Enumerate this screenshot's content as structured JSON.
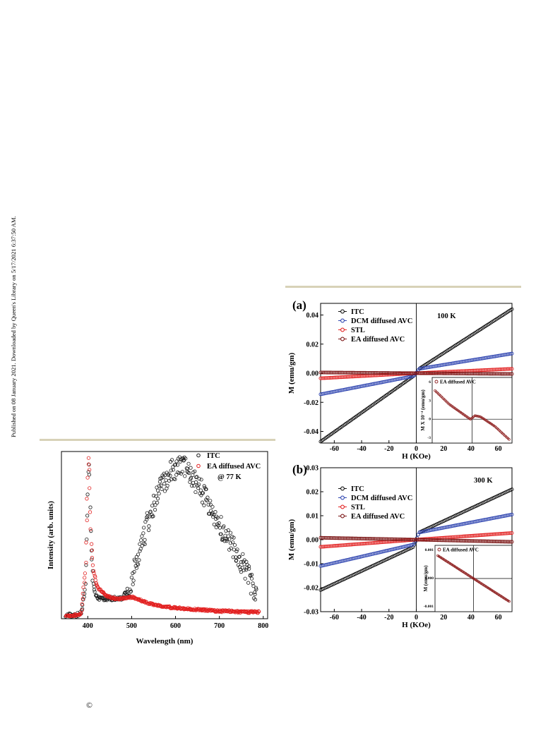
{
  "page": {
    "side_note": "Published on 08 January 2021. Downloaded by Queen's Library on 5/17/2021 6:37:50 AM.",
    "copyright_symbol": "©",
    "rule_color": "#d8d2b8"
  },
  "chart_data": [
    {
      "type": "scatter",
      "xlabel": "Wavelength (nm)",
      "ylabel": "Intensity (arb. units)",
      "xlim": [
        340,
        810
      ],
      "ylim": [
        0,
        1
      ],
      "xticks": [
        "400",
        "500",
        "600",
        "700",
        "800"
      ],
      "annotation": "@ 77 K",
      "legend_position": "top-right",
      "series": [
        {
          "name": "ITC",
          "color": "#1a1a1a",
          "x": [
            350,
            370,
            385,
            395,
            400,
            402,
            404,
            406,
            408,
            412,
            418,
            425,
            440,
            460,
            480,
            500,
            520,
            540,
            560,
            580,
            600,
            615,
            625,
            640,
            660,
            680,
            700,
            720,
            740,
            760,
            775,
            785
          ],
          "y": [
            0.02,
            0.02,
            0.03,
            0.2,
            0.75,
            0.95,
            0.85,
            0.55,
            0.4,
            0.22,
            0.15,
            0.12,
            0.12,
            0.12,
            0.12,
            0.22,
            0.42,
            0.6,
            0.75,
            0.85,
            0.9,
            0.91,
            0.89,
            0.84,
            0.76,
            0.66,
            0.56,
            0.48,
            0.4,
            0.3,
            0.2,
            0.14
          ]
        },
        {
          "name": "EA diffused AVC",
          "color": "#e22020",
          "x": [
            350,
            370,
            385,
            395,
            400,
            402,
            404,
            406,
            408,
            412,
            418,
            425,
            440,
            460,
            480,
            500,
            520,
            540,
            560,
            580,
            600,
            625,
            650,
            675,
            700,
            725,
            750,
            775,
            790
          ],
          "y": [
            0.02,
            0.02,
            0.03,
            0.3,
            0.85,
            0.98,
            0.85,
            0.6,
            0.45,
            0.3,
            0.22,
            0.18,
            0.14,
            0.12,
            0.12,
            0.13,
            0.11,
            0.09,
            0.08,
            0.07,
            0.065,
            0.06,
            0.055,
            0.05,
            0.045,
            0.045,
            0.04,
            0.04,
            0.04
          ]
        }
      ]
    },
    {
      "type": "scatter",
      "panel_label": "(a)",
      "xlabel": "H (KOe)",
      "ylabel": "M (emu/gm)",
      "xlim": [
        -70,
        70
      ],
      "ylim": [
        -0.048,
        0.048
      ],
      "xticks": [
        -60,
        -40,
        -20,
        0,
        20,
        40,
        60
      ],
      "yticks": [
        -0.04,
        -0.02,
        0.0,
        0.02,
        0.04
      ],
      "ytick_labels": [
        "-0.04",
        "-0.02",
        "0.00",
        "0.02",
        "0.04"
      ],
      "annotation": "100 K",
      "legend_position": "top-left",
      "series": [
        {
          "name": "ITC",
          "color": "#111111",
          "x": [
            -70,
            -2,
            0,
            2,
            70
          ],
          "y": [
            -0.047,
            -0.002,
            0.0,
            0.003,
            0.044
          ]
        },
        {
          "name": "DCM diffused AVC",
          "color": "#2f45b0",
          "x": [
            -70,
            -2,
            0,
            2,
            70
          ],
          "y": [
            -0.0145,
            -0.002,
            0.0,
            0.003,
            0.0135
          ]
        },
        {
          "name": "STL",
          "color": "#e22020",
          "x": [
            -70,
            0,
            70
          ],
          "y": [
            -0.0035,
            0.0,
            0.003
          ]
        },
        {
          "name": "EA diffused AVC",
          "color": "#7a1414",
          "x": [
            -70,
            0,
            70
          ],
          "y": [
            0.0005,
            0.0,
            -0.0005
          ]
        }
      ],
      "inset": {
        "legend": "EA diffused AVC",
        "ylabel": "M X 10⁻⁴ (emu/gm)",
        "yticks": [
          "6",
          "3",
          "0",
          "-3"
        ],
        "xlim": [
          -70,
          70
        ],
        "ylim": [
          -4,
          7
        ],
        "series": [
          {
            "name": "EA diffused AVC",
            "color": "#8b1a1a",
            "x": [
              -65,
              -40,
              -15,
              -3,
              0,
              5,
              15,
              40,
              65
            ],
            "y": [
              4.8,
              2.5,
              0.8,
              0.0,
              0.2,
              0.6,
              0.4,
              -1.2,
              -3.4
            ]
          }
        ]
      }
    },
    {
      "type": "scatter",
      "panel_label": "(b)",
      "xlabel": "H (KOe)",
      "ylabel": "M (emu/gm)",
      "xlim": [
        -70,
        70
      ],
      "ylim": [
        -0.03,
        0.03
      ],
      "xticks": [
        -60,
        -40,
        -20,
        0,
        20,
        40,
        60
      ],
      "yticks": [
        -0.03,
        -0.02,
        -0.01,
        0.0,
        0.01,
        0.02,
        0.03
      ],
      "ytick_labels": [
        "-0.03",
        "-0.02",
        "-0.01",
        "0.00",
        "0.01",
        "0.02",
        "0.03"
      ],
      "annotation": "300 K",
      "legend_position": "top-left",
      "series": [
        {
          "name": "ITC",
          "color": "#111111",
          "x": [
            -70,
            -2,
            0,
            2,
            70
          ],
          "y": [
            -0.021,
            -0.003,
            0.0,
            0.003,
            0.021
          ]
        },
        {
          "name": "DCM diffused AVC",
          "color": "#2f45b0",
          "x": [
            -70,
            -2,
            0,
            2,
            70
          ],
          "y": [
            -0.011,
            -0.002,
            0.0,
            0.003,
            0.0105
          ]
        },
        {
          "name": "STL",
          "color": "#e22020",
          "x": [
            -70,
            0,
            70
          ],
          "y": [
            -0.003,
            0.0,
            0.0028
          ]
        },
        {
          "name": "EA diffused AVC",
          "color": "#7a1414",
          "x": [
            -70,
            0,
            70
          ],
          "y": [
            0.0008,
            0.0,
            -0.0009
          ]
        }
      ],
      "inset": {
        "legend": "EA diffused AVC",
        "ylabel": "M (emu/gm)",
        "yticks": [
          "0.001",
          "0.000",
          "-0.001"
        ],
        "xlim": [
          -70,
          70
        ],
        "ylim": [
          -0.0013,
          0.0013
        ],
        "series": [
          {
            "name": "EA diffused AVC",
            "color": "#8b1a1a",
            "x": [
              -65,
              0,
              65
            ],
            "y": [
              0.0009,
              0.0,
              -0.0009
            ]
          }
        ]
      }
    }
  ]
}
